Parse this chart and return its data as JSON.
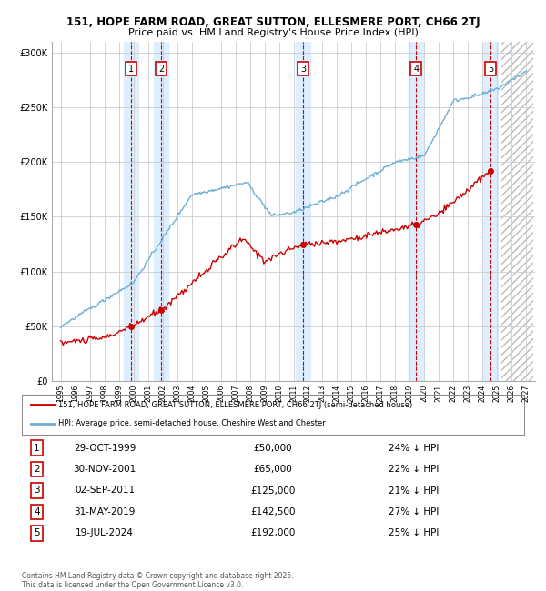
{
  "title_line1": "151, HOPE FARM ROAD, GREAT SUTTON, ELLESMERE PORT, CH66 2TJ",
  "title_line2": "Price paid vs. HM Land Registry's House Price Index (HPI)",
  "x_start_year": 1995,
  "x_end_year": 2027,
  "y_ticks": [
    0,
    50000,
    100000,
    150000,
    200000,
    250000,
    300000
  ],
  "y_labels": [
    "£0",
    "£50K",
    "£100K",
    "£150K",
    "£200K",
    "£250K",
    "£300K"
  ],
  "sales": [
    {
      "label": "1",
      "date": "29-OCT-1999",
      "price": 50000,
      "pct": "24%",
      "year": 1999.83
    },
    {
      "label": "2",
      "date": "30-NOV-2001",
      "price": 65000,
      "pct": "22%",
      "year": 2001.92
    },
    {
      "label": "3",
      "date": "02-SEP-2011",
      "price": 125000,
      "pct": "21%",
      "year": 2011.67
    },
    {
      "label": "4",
      "date": "31-MAY-2019",
      "price": 142500,
      "pct": "27%",
      "year": 2019.42
    },
    {
      "label": "5",
      "date": "19-JUL-2024",
      "price": 192000,
      "pct": "25%",
      "year": 2024.55
    }
  ],
  "hpi_color": "#6baed6",
  "price_color": "#cc0000",
  "shaded_color": "#ddeeff",
  "legend_line1": "151, HOPE FARM ROAD, GREAT SUTTON, ELLESMERE PORT, CH66 2TJ (semi-detached house)",
  "legend_line2": "HPI: Average price, semi-detached house, Cheshire West and Chester",
  "footer": "Contains HM Land Registry data © Crown copyright and database right 2025.\nThis data is licensed under the Open Government Licence v3.0.",
  "background_color": "#ffffff",
  "grid_color": "#cccccc"
}
